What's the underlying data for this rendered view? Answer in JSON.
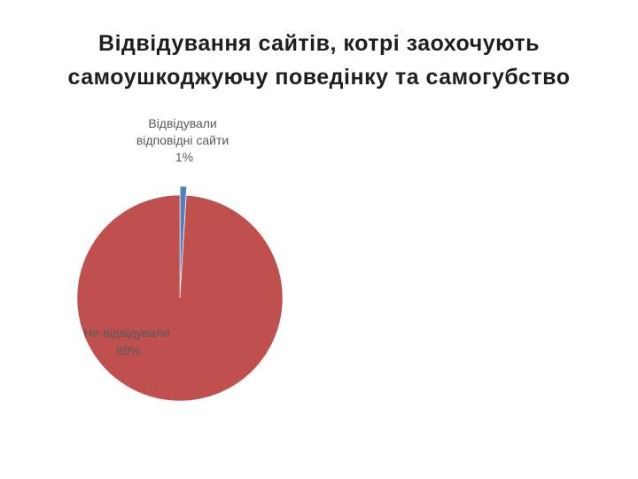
{
  "title_lines": [
    "Відвідування сайтів, котрі заохочують",
    "самоушкоджуючу поведінку та самогубство"
  ],
  "chart_data": {
    "type": "pie",
    "title": "Відвідування сайтів, котрі заохочують самоушкоджуючу поведінку та самогубство",
    "legend": "none",
    "slices": [
      {
        "label_lines": [
          "Відвідували",
          "відповідні сайти"
        ],
        "percent_label": "1%",
        "value": 1,
        "color": "#4f81bd",
        "exploded": true
      },
      {
        "label_lines": [
          "Не відвідували"
        ],
        "percent_label": "99%",
        "value": 99,
        "color": "#c0504d",
        "exploded": false
      }
    ]
  }
}
